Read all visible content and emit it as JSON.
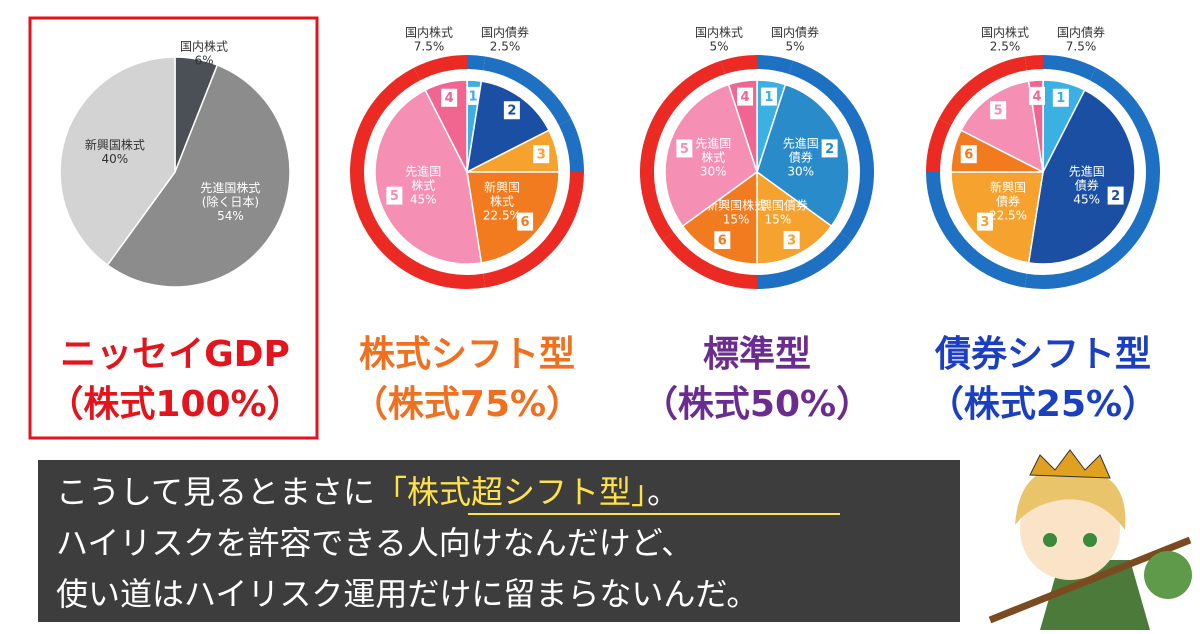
{
  "chart_data": [
    {
      "type": "pie",
      "title": "ニッセイGDP",
      "subtitle": "（株式100%）",
      "title_color": "#e3141c",
      "categories": [
        [
          "国内株式"
        ],
        [
          "先進国株式",
          "(除く日本)"
        ],
        [
          "新興国株式"
        ]
      ],
      "values": [
        6,
        54,
        40
      ],
      "value_labels": [
        "6%",
        "54%",
        "40%"
      ],
      "colors": [
        "#4b5057",
        "#8c8c8c",
        "#d3d3d3"
      ]
    },
    {
      "type": "ring-pie",
      "title": "株式シフト型",
      "subtitle": "（株式75%）",
      "title_color": "#f07020",
      "categories": [
        [
          "国内債券"
        ],
        null,
        null,
        [
          "新興国",
          "株式"
        ],
        [
          "先進国",
          "株式"
        ],
        [
          "国内株式"
        ]
      ],
      "values": [
        2.5,
        15,
        7.5,
        22.5,
        45,
        7.5
      ],
      "value_labels": [
        "2.5%",
        null,
        null,
        "22.5%",
        "45%",
        "7.5%"
      ],
      "badges": [
        "1",
        "2",
        "3",
        "6",
        "5",
        "4"
      ],
      "colors": [
        "#3bb0e3",
        "#1b4fa3",
        "#f6a22e",
        "#f37b1f",
        "#f58fb3",
        "#f06690"
      ],
      "ring_colors": [
        "#1e70c2",
        "#1e70c2",
        "#1e70c2",
        "#ec2a24",
        "#ec2a24",
        "#ec2a24"
      ]
    },
    {
      "type": "ring-pie",
      "title": "標準型",
      "subtitle": "（株式50%）",
      "title_color": "#6a2d8f",
      "categories": [
        [
          "国内債券"
        ],
        [
          "先進国",
          "債券"
        ],
        [
          "新興国債券"
        ],
        [
          "新興国株式"
        ],
        [
          "先進国",
          "株式"
        ],
        [
          "国内株式"
        ]
      ],
      "values": [
        5,
        30,
        15,
        15,
        30,
        5
      ],
      "value_labels": [
        "5%",
        "30%",
        "15%",
        "15%",
        "30%",
        "5%"
      ],
      "badges": [
        "1",
        "2",
        "3",
        "6",
        "5",
        "4"
      ],
      "colors": [
        "#3bb0e3",
        "#2a8bcb",
        "#f6a22e",
        "#f37b1f",
        "#f58fb3",
        "#f06690"
      ],
      "ring_colors": [
        "#1e70c2",
        "#1e70c2",
        "#1e70c2",
        "#ec2a24",
        "#ec2a24",
        "#ec2a24"
      ]
    },
    {
      "type": "ring-pie",
      "title": "債券シフト型",
      "subtitle": "（株式25%）",
      "title_color": "#1a3fc0",
      "categories": [
        [
          "国内債券"
        ],
        [
          "先進国",
          "債券"
        ],
        [
          "新興国",
          "債券"
        ],
        null,
        null,
        [
          "国内株式"
        ]
      ],
      "values": [
        7.5,
        45,
        22.5,
        7.5,
        15,
        2.5
      ],
      "value_labels": [
        "7.5%",
        "45%",
        "22.5%",
        null,
        null,
        "2.5%"
      ],
      "badges": [
        "1",
        "2",
        "3",
        "6",
        "5",
        "4"
      ],
      "colors": [
        "#3bb0e3",
        "#1b4fa3",
        "#f6a22e",
        "#f37b1f",
        "#f58fb3",
        "#f06690"
      ],
      "ring_colors": [
        "#1e70c2",
        "#1e70c2",
        "#1e70c2",
        "#ec2a24",
        "#ec2a24",
        "#ec2a24"
      ]
    }
  ],
  "caption": {
    "before": "こうして見るとまさに",
    "highlight": "「株式超シフト型」",
    "after": "。",
    "line2": "ハイリスクを許容できる人向けなんだけど、",
    "line3": "使い道はハイリスク運用だけに留まらないんだ。"
  }
}
